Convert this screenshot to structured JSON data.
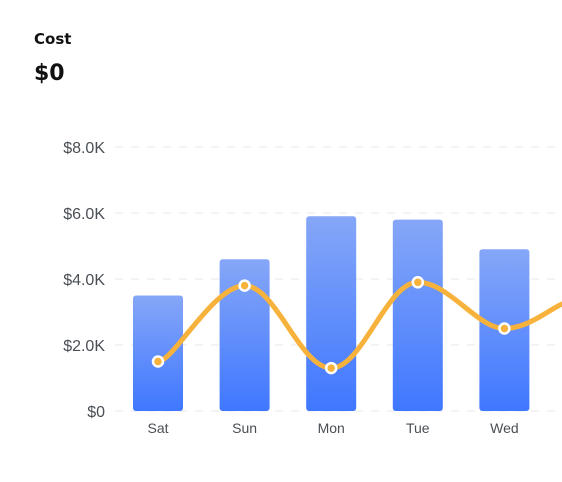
{
  "header": {
    "title": "Cost",
    "value": "$0"
  },
  "chart_data": {
    "type": "bar",
    "title": "",
    "xlabel": "",
    "ylabel": "",
    "categories": [
      "Sat",
      "Sun",
      "Mon",
      "Tue",
      "Wed"
    ],
    "series": [
      {
        "type": "bar",
        "values": [
          3500,
          4600,
          5900,
          5800,
          4900
        ],
        "color": "#4a7ef7"
      },
      {
        "type": "line",
        "smooth": true,
        "values": [
          1500,
          3800,
          1300,
          3900,
          2500
        ],
        "color": "#f7b23b"
      }
    ],
    "y_ticks": [
      "$0",
      "$2.0K",
      "$4.0K",
      "$6.0K",
      "$8.0K"
    ],
    "ylim": [
      0,
      8000
    ],
    "grid": true,
    "legend": "none"
  },
  "colors": {
    "bar_top": "#86a7f8",
    "bar_bottom": "#3f77ff",
    "line": "#f7b23b",
    "grid": "#e4e7eb",
    "text": "#4a4f55"
  }
}
